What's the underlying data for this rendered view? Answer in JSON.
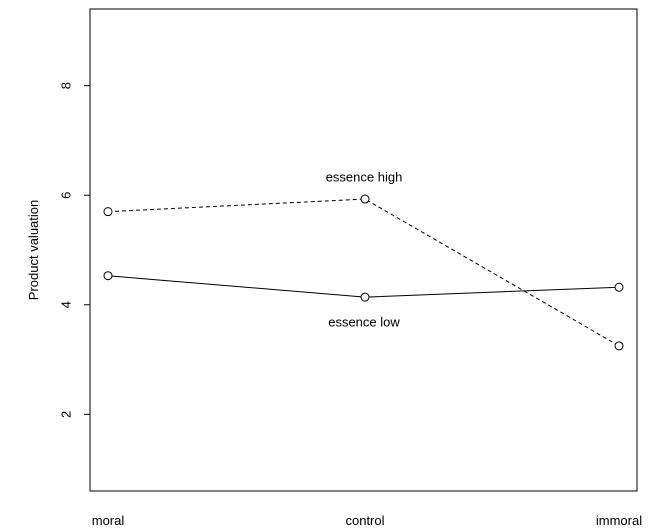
{
  "chart_data": {
    "type": "line",
    "title": "",
    "xlabel": "",
    "ylabel": "Product valuation",
    "categories": [
      "moral",
      "control",
      "immoral"
    ],
    "ylim": [
      0.6,
      9.4
    ],
    "yticks": [
      2,
      4,
      6,
      8
    ],
    "ytick_labels": [
      "2",
      "4",
      "6",
      "8"
    ],
    "grid": false,
    "legend": "none",
    "series": [
      {
        "name": "essence high",
        "values": [
          5.7,
          5.93,
          3.25
        ],
        "line_style": "dashed",
        "marker": "open-circle",
        "color": "#000000"
      },
      {
        "name": "essence low",
        "values": [
          4.53,
          4.14,
          4.32
        ],
        "line_style": "solid",
        "marker": "open-circle",
        "color": "#000000"
      }
    ]
  }
}
